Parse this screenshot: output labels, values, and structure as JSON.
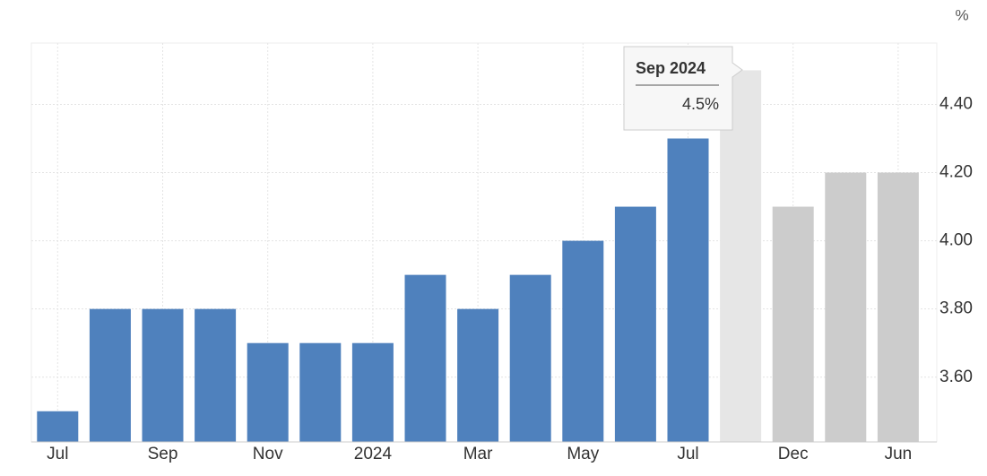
{
  "chart_data": {
    "type": "bar",
    "unit": "%",
    "categories": [
      "Jul",
      null,
      "Sep",
      null,
      "Nov",
      null,
      "2024",
      null,
      "Mar",
      null,
      "May",
      null,
      "Jul",
      null,
      "Dec",
      null,
      "Jun"
    ],
    "values": [
      3.5,
      3.8,
      3.8,
      3.8,
      3.7,
      3.7,
      3.7,
      3.9,
      3.8,
      3.9,
      4.0,
      4.1,
      4.3,
      4.5,
      4.1,
      4.2,
      4.2
    ],
    "colors": [
      "#4f81bd",
      "#4f81bd",
      "#4f81bd",
      "#4f81bd",
      "#4f81bd",
      "#4f81bd",
      "#4f81bd",
      "#4f81bd",
      "#4f81bd",
      "#4f81bd",
      "#4f81bd",
      "#4f81bd",
      "#4f81bd",
      "#e6e6e6",
      "#cccccc",
      "#cccccc",
      "#cccccc"
    ],
    "ylim": [
      3.41,
      4.58
    ],
    "yticks": [
      {
        "value": 3.6,
        "label": "3.60"
      },
      {
        "value": 3.8,
        "label": "3.80"
      },
      {
        "value": 4.0,
        "label": "4.00"
      },
      {
        "value": 4.2,
        "label": "4.20"
      },
      {
        "value": 4.4,
        "label": "4.40"
      }
    ],
    "grid": true,
    "tooltip": {
      "title": "Sep 2024",
      "label": "4.5%"
    }
  }
}
